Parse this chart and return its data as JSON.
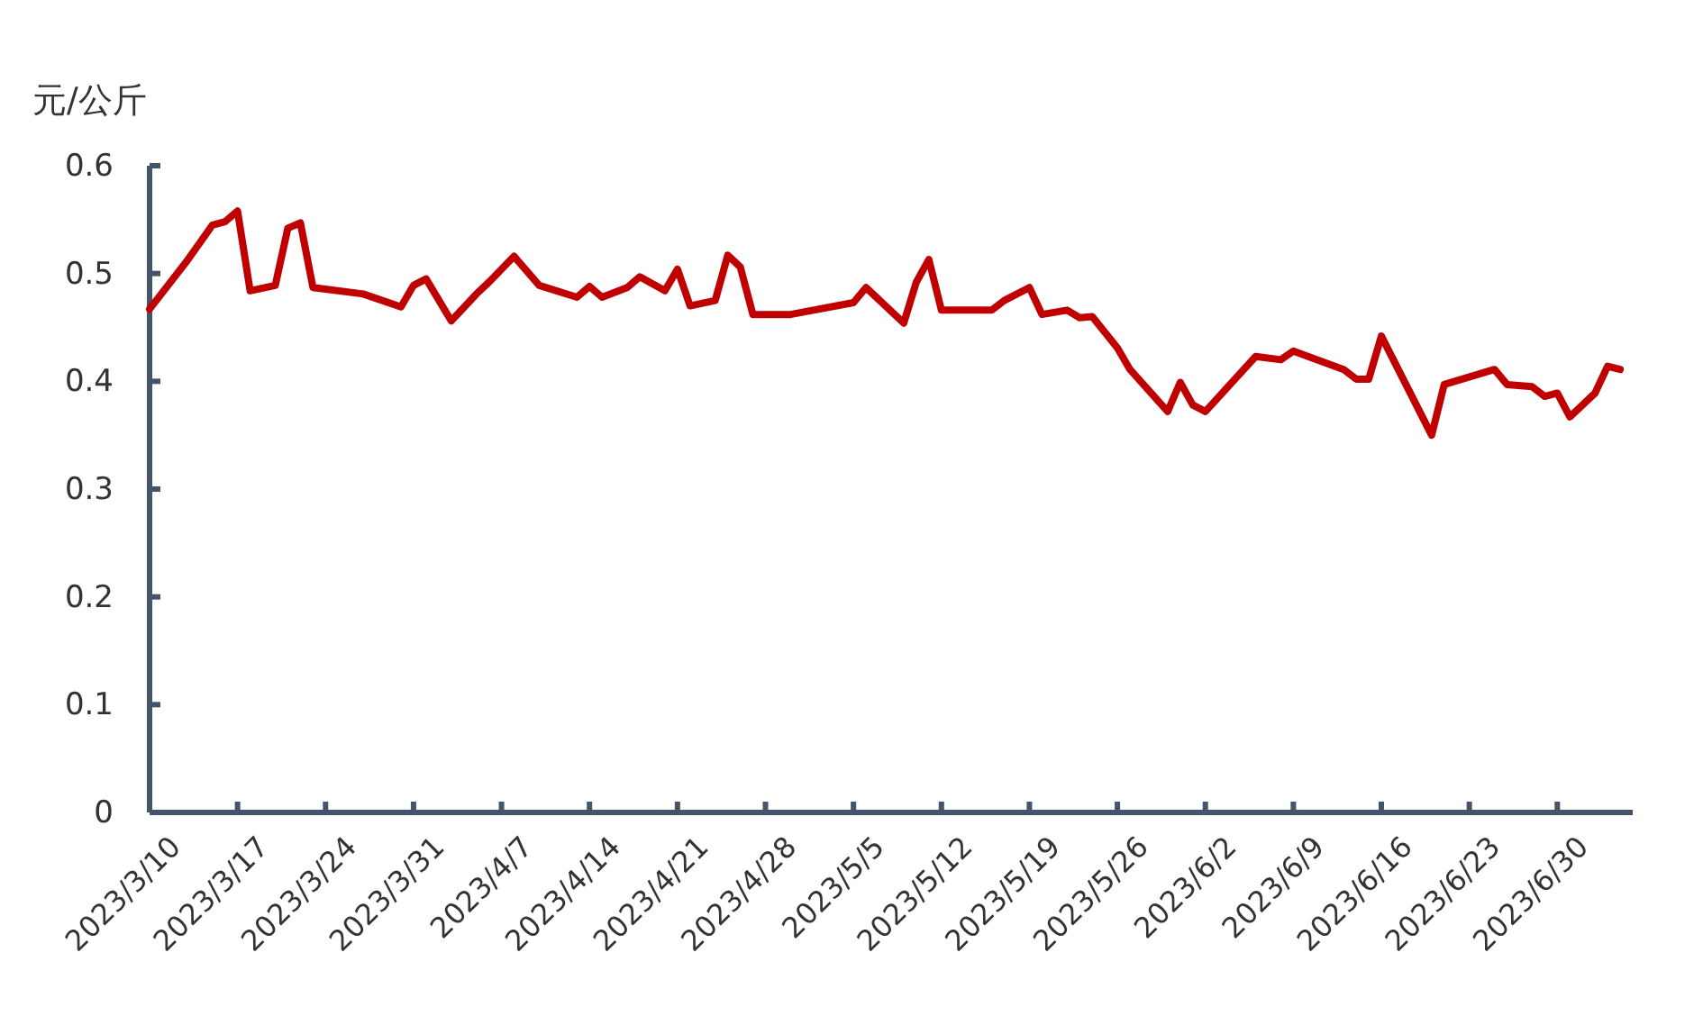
{
  "chart_data": {
    "type": "line",
    "ylabel": "元/公斤",
    "x": [
      "2023-03-10",
      "2023-03-13",
      "2023-03-15",
      "2023-03-16",
      "2023-03-17",
      "2023-03-18",
      "2023-03-20",
      "2023-03-21",
      "2023-03-22",
      "2023-03-23",
      "2023-03-27",
      "2023-03-30",
      "2023-03-31",
      "2023-04-01",
      "2023-04-03",
      "2023-04-05",
      "2023-04-06",
      "2023-04-08",
      "2023-04-10",
      "2023-04-13",
      "2023-04-14",
      "2023-04-15",
      "2023-04-17",
      "2023-04-18",
      "2023-04-20",
      "2023-04-21",
      "2023-04-22",
      "2023-04-24",
      "2023-04-25",
      "2023-04-26",
      "2023-04-27",
      "2023-04-30",
      "2023-05-05",
      "2023-05-06",
      "2023-05-09",
      "2023-05-10",
      "2023-05-11",
      "2023-05-12",
      "2023-05-16",
      "2023-05-17",
      "2023-05-19",
      "2023-05-20",
      "2023-05-22",
      "2023-05-23",
      "2023-05-24",
      "2023-05-26",
      "2023-05-27",
      "2023-05-30",
      "2023-05-31",
      "2023-06-01",
      "2023-06-02",
      "2023-06-06",
      "2023-06-08",
      "2023-06-09",
      "2023-06-13",
      "2023-06-14",
      "2023-06-15",
      "2023-06-16",
      "2023-06-20",
      "2023-06-21",
      "2023-06-25",
      "2023-06-26",
      "2023-06-28",
      "2023-06-29",
      "2023-06-30",
      "2023-07-01",
      "2023-07-03",
      "2023-07-04",
      "2023-07-05"
    ],
    "series": [
      {
        "color": "#c00000",
        "values": [
          0.467,
          0.512,
          0.545,
          0.548,
          0.558,
          0.484,
          0.489,
          0.542,
          0.547,
          0.487,
          0.481,
          0.469,
          0.489,
          0.495,
          0.456,
          0.481,
          0.492,
          0.516,
          0.489,
          0.478,
          0.488,
          0.478,
          0.487,
          0.497,
          0.484,
          0.504,
          0.47,
          0.475,
          0.517,
          0.506,
          0.462,
          0.462,
          0.473,
          0.487,
          0.454,
          0.492,
          0.513,
          0.466,
          0.466,
          0.475,
          0.487,
          0.462,
          0.466,
          0.459,
          0.46,
          0.431,
          0.411,
          0.372,
          0.399,
          0.378,
          0.372,
          0.423,
          0.42,
          0.428,
          0.411,
          0.402,
          0.402,
          0.442,
          0.35,
          0.397,
          0.411,
          0.397,
          0.395,
          0.386,
          0.389,
          0.367,
          0.389,
          0.414,
          0.411
        ]
      }
    ],
    "xlim": [
      "2023-03-10",
      "2023-07-06"
    ],
    "xticks": [
      {
        "value": "2023-03-10",
        "label": "2023/3/10"
      },
      {
        "value": "2023-03-17",
        "label": "2023/3/17"
      },
      {
        "value": "2023-03-24",
        "label": "2023/3/24"
      },
      {
        "value": "2023-03-31",
        "label": "2023/3/31"
      },
      {
        "value": "2023-04-07",
        "label": "2023/4/7"
      },
      {
        "value": "2023-04-14",
        "label": "2023/4/14"
      },
      {
        "value": "2023-04-21",
        "label": "2023/4/21"
      },
      {
        "value": "2023-04-28",
        "label": "2023/4/28"
      },
      {
        "value": "2023-05-05",
        "label": "2023/5/5"
      },
      {
        "value": "2023-05-12",
        "label": "2023/5/12"
      },
      {
        "value": "2023-05-19",
        "label": "2023/5/19"
      },
      {
        "value": "2023-05-26",
        "label": "2023/5/26"
      },
      {
        "value": "2023-06-02",
        "label": "2023/6/2"
      },
      {
        "value": "2023-06-09",
        "label": "2023/6/9"
      },
      {
        "value": "2023-06-16",
        "label": "2023/6/16"
      },
      {
        "value": "2023-06-23",
        "label": "2023/6/23"
      },
      {
        "value": "2023-06-30",
        "label": "2023/6/30"
      }
    ],
    "ylim": [
      0,
      0.6
    ],
    "yticks": [
      0,
      0.1,
      0.2,
      0.3,
      0.4,
      0.5,
      0.6
    ],
    "grid": false,
    "marker": "none",
    "line_style": "solid"
  }
}
